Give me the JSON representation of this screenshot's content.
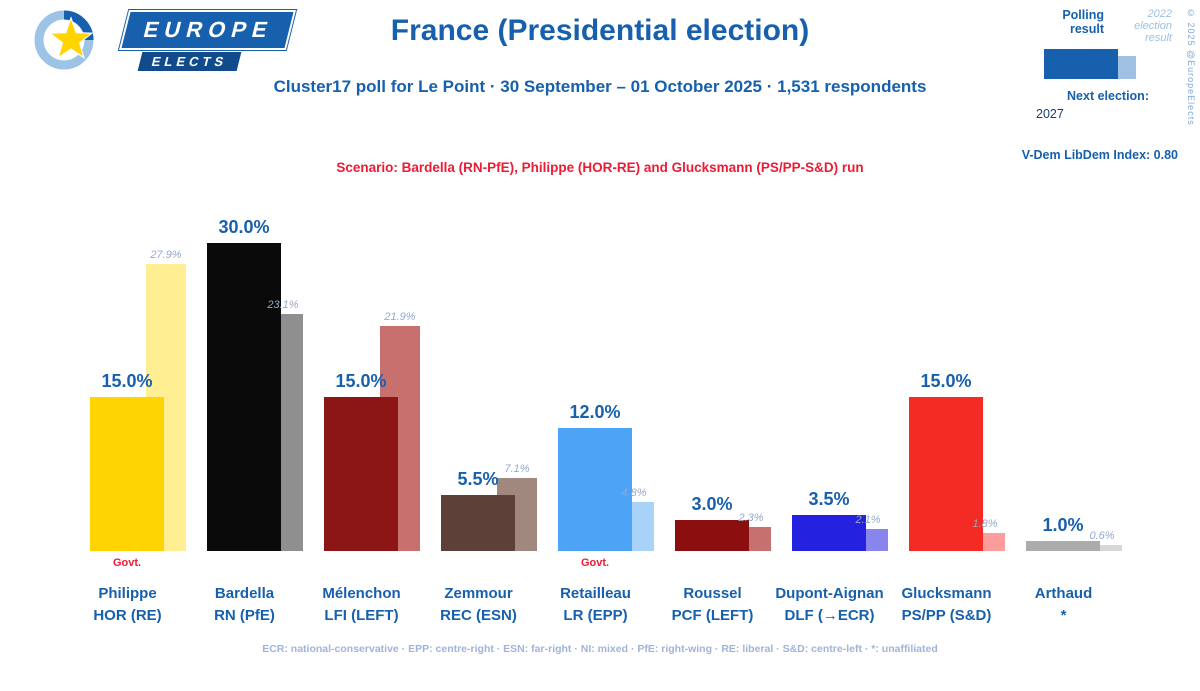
{
  "header": {
    "logo": {
      "line1": "EUROPE",
      "line2": "ELECTS"
    },
    "title": "France (Presidential election)",
    "subtitle": "Cluster17 poll for Le Point · 30 September – 01 October 2025 · 1,531 respondents",
    "scenario": "Scenario: Bardella (RN-PfE), Philippe (HOR-RE) and Glucksmann (PS/PP-S&D) run"
  },
  "legend": {
    "polling_label": "Polling result",
    "election_label": "2022 election result",
    "next_election_label": "Next election:",
    "next_election_year": "2027",
    "vdem": "V-Dem LibDem Index: 0.80",
    "copyright": "© 2025 @EuropeElects",
    "polling_color": "#1760AE",
    "election_color": "#9fc0e2"
  },
  "footer": "ECR: national-conservative · EPP: centre-right · ESN: far-right · NI: mixed · PfE: right-wing · RE: liberal · S&D: centre-left · *: unaffiliated",
  "chart_data": {
    "type": "bar",
    "title": "France (Presidential election)",
    "series_labels": [
      "Polling result",
      "2022 election result"
    ],
    "value_unit": "%",
    "ylim": [
      0,
      31
    ],
    "grid": false,
    "legend_position": "top-right",
    "candidates": [
      {
        "name": "Philippe",
        "party": "HOR (RE)",
        "polling": 15.0,
        "result2022": 27.9,
        "govt": "Govt.",
        "colors": {
          "polling": "#FFD400",
          "result2022": "#FFEE92"
        }
      },
      {
        "name": "Bardella",
        "party": "RN (PfE)",
        "polling": 30.0,
        "result2022": 23.1,
        "govt": "",
        "colors": {
          "polling": "#0A0A0A",
          "result2022": "#8F8F8F"
        }
      },
      {
        "name": "Mélenchon",
        "party": "LFI (LEFT)",
        "polling": 15.0,
        "result2022": 21.9,
        "govt": "",
        "colors": {
          "polling": "#8C1515",
          "result2022": "#C8706E"
        }
      },
      {
        "name": "Zemmour",
        "party": "REC (ESN)",
        "polling": 5.5,
        "result2022": 7.1,
        "govt": "",
        "colors": {
          "polling": "#5D4037",
          "result2022": "#A1887F"
        }
      },
      {
        "name": "Retailleau",
        "party": "LR (EPP)",
        "polling": 12.0,
        "result2022": 4.8,
        "govt": "Govt.",
        "colors": {
          "polling": "#4DA3F5",
          "result2022": "#A9D2F9"
        }
      },
      {
        "name": "Roussel",
        "party": "PCF (LEFT)",
        "polling": 3.0,
        "result2022": 2.3,
        "govt": "",
        "colors": {
          "polling": "#8B0F0F",
          "result2022": "#C4716F"
        }
      },
      {
        "name": "Dupont-Aignan",
        "party": "DLF (→ECR)",
        "polling": 3.5,
        "result2022": 2.1,
        "govt": "",
        "colors": {
          "polling": "#2421E0",
          "result2022": "#8886EC"
        }
      },
      {
        "name": "Glucksmann",
        "party": "PS/PP (S&D)",
        "polling": 15.0,
        "result2022": 1.8,
        "govt": "",
        "colors": {
          "polling": "#F42A24",
          "result2022": "#FB9E9B"
        }
      },
      {
        "name": "Arthaud",
        "party": "*",
        "polling": 1.0,
        "result2022": 0.6,
        "govt": "",
        "colors": {
          "polling": "#ABABAB",
          "result2022": "#D6D6D6"
        }
      }
    ]
  }
}
